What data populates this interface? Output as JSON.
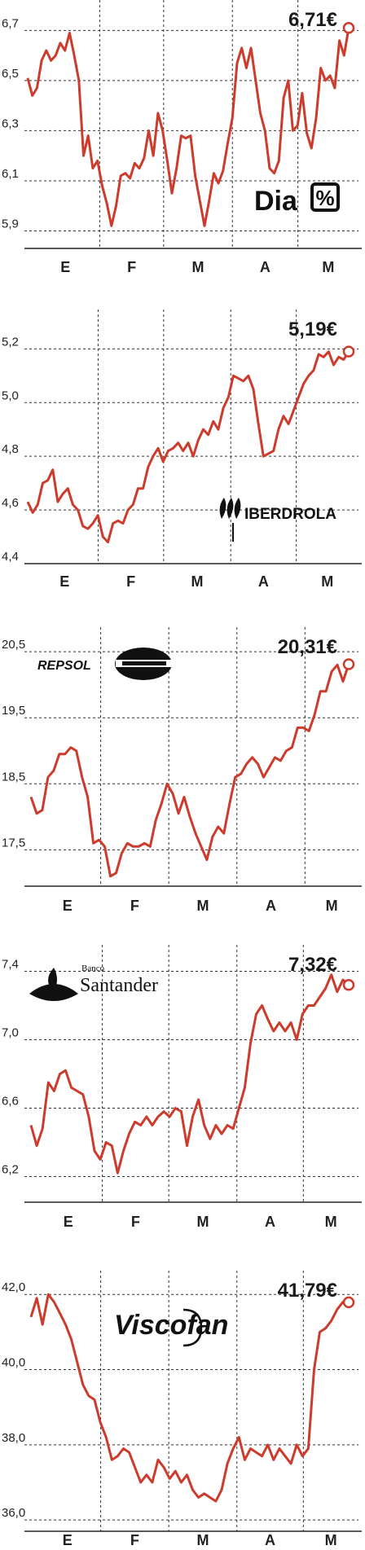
{
  "colors": {
    "line": "#cc3b2b",
    "grid": "#333333",
    "axis": "#222222",
    "text": "#222222"
  },
  "months": [
    "E",
    "F",
    "M",
    "A",
    "M"
  ],
  "chart_data": [
    {
      "type": "line",
      "company_logo": "Dia %",
      "price_label": "6,71€",
      "yticks": [
        "6,7",
        "6,5",
        "6,3",
        "6,1",
        "5,9"
      ],
      "ytick_values": [
        6.7,
        6.5,
        6.3,
        6.1,
        5.9
      ],
      "ylim": [
        5.83,
        6.75
      ],
      "xlabels": [
        "E",
        "F",
        "M",
        "A",
        "M"
      ],
      "month_boundaries": [
        0.21,
        0.405,
        0.615,
        0.815
      ],
      "series": [
        {
          "values": [
            6.51,
            6.44,
            6.47,
            6.58,
            6.62,
            6.58,
            6.6,
            6.65,
            6.62,
            6.69,
            6.6,
            6.5,
            6.2,
            6.28,
            6.15,
            6.18,
            6.08,
            6.01,
            5.92,
            6.0,
            6.12,
            6.13,
            6.11,
            6.17,
            6.15,
            6.19,
            6.3,
            6.2,
            6.37,
            6.3,
            6.18,
            6.05,
            6.15,
            6.28,
            6.27,
            6.28,
            6.12,
            6.02,
            5.92,
            6.02,
            6.13,
            6.09,
            6.14,
            6.25,
            6.35,
            6.57,
            6.63,
            6.55,
            6.63,
            6.5,
            6.37,
            6.3,
            6.15,
            6.13,
            6.18,
            6.43,
            6.5,
            6.3,
            6.32,
            6.45,
            6.29,
            6.23,
            6.35,
            6.55,
            6.5,
            6.52,
            6.47,
            6.66,
            6.6,
            6.71
          ]
        }
      ]
    },
    {
      "type": "line",
      "company_logo": "IBERDROLA",
      "price_label": "5,19€",
      "yticks": [
        "5,2",
        "5,0",
        "4,8",
        "4,6",
        "4,4"
      ],
      "ytick_values": [
        5.2,
        5.0,
        4.8,
        4.6,
        4.4
      ],
      "ylim": [
        4.4,
        5.28
      ],
      "xlabels": [
        "E",
        "F",
        "M",
        "A",
        "M"
      ],
      "month_boundaries": [
        0.205,
        0.405,
        0.61,
        0.81
      ],
      "series": [
        {
          "values": [
            4.63,
            4.59,
            4.62,
            4.7,
            4.71,
            4.75,
            4.63,
            4.66,
            4.68,
            4.62,
            4.6,
            4.54,
            4.53,
            4.55,
            4.58,
            4.5,
            4.48,
            4.55,
            4.56,
            4.55,
            4.6,
            4.62,
            4.68,
            4.68,
            4.76,
            4.8,
            4.83,
            4.78,
            4.82,
            4.83,
            4.85,
            4.82,
            4.85,
            4.8,
            4.86,
            4.9,
            4.88,
            4.93,
            4.9,
            4.98,
            5.02,
            5.1,
            5.09,
            5.08,
            5.1,
            5.05,
            4.92,
            4.8,
            4.81,
            4.82,
            4.9,
            4.95,
            4.92,
            4.97,
            5.02,
            5.07,
            5.1,
            5.12,
            5.18,
            5.17,
            5.19,
            5.14,
            5.17,
            5.16,
            5.19
          ]
        }
      ]
    },
    {
      "type": "line",
      "company_logo": "REPSOL",
      "price_label": "20,31€",
      "yticks": [
        "20,5",
        "19,5",
        "18,5",
        "17,5"
      ],
      "ytick_values": [
        20.5,
        19.5,
        18.5,
        17.5
      ],
      "ylim": [
        16.95,
        20.6
      ],
      "xlabels": [
        "E",
        "F",
        "M",
        "A",
        "M"
      ],
      "month_boundaries": [
        0.205,
        0.415,
        0.625,
        0.835
      ],
      "series": [
        {
          "values": [
            18.3,
            18.05,
            18.1,
            18.6,
            18.7,
            18.95,
            18.95,
            19.05,
            19.0,
            18.6,
            18.3,
            17.6,
            17.65,
            17.55,
            17.1,
            17.15,
            17.45,
            17.6,
            17.55,
            17.55,
            17.6,
            17.55,
            17.95,
            18.2,
            18.5,
            18.35,
            18.05,
            18.3,
            18.0,
            17.75,
            17.55,
            17.35,
            17.7,
            17.85,
            17.75,
            18.2,
            18.6,
            18.65,
            18.8,
            18.9,
            18.8,
            18.6,
            18.75,
            18.9,
            18.85,
            19.0,
            19.05,
            19.35,
            19.35,
            19.3,
            19.55,
            19.9,
            19.9,
            20.2,
            20.3,
            20.05,
            20.31
          ]
        }
      ]
    },
    {
      "type": "line",
      "company_logo": "Banco Santander",
      "price_label": "7,32€",
      "yticks": [
        "7,4",
        "7,0",
        "6,6",
        "6,2"
      ],
      "ytick_values": [
        7.4,
        7.0,
        6.6,
        6.2
      ],
      "ylim": [
        6.05,
        7.45
      ],
      "xlabels": [
        "E",
        "F",
        "M",
        "A",
        "M"
      ],
      "month_boundaries": [
        0.21,
        0.415,
        0.625,
        0.83
      ],
      "series": [
        {
          "values": [
            6.5,
            6.38,
            6.48,
            6.75,
            6.7,
            6.8,
            6.82,
            6.72,
            6.7,
            6.68,
            6.55,
            6.35,
            6.3,
            6.4,
            6.38,
            6.22,
            6.35,
            6.45,
            6.52,
            6.5,
            6.55,
            6.5,
            6.55,
            6.58,
            6.55,
            6.6,
            6.58,
            6.38,
            6.55,
            6.65,
            6.5,
            6.42,
            6.5,
            6.45,
            6.5,
            6.48,
            6.6,
            6.72,
            6.98,
            7.15,
            7.2,
            7.12,
            7.05,
            7.1,
            7.05,
            7.1,
            7.0,
            7.15,
            7.2,
            7.2,
            7.25,
            7.3,
            7.38,
            7.28,
            7.35,
            7.32
          ]
        }
      ]
    },
    {
      "type": "line",
      "company_logo": "Viscofan",
      "price_label": "41,79€",
      "yticks": [
        "42,0",
        "40,0",
        "38,0",
        "36,0"
      ],
      "ytick_values": [
        42.0,
        40.0,
        38.0,
        36.0
      ],
      "ylim": [
        35.7,
        42.2
      ],
      "xlabels": [
        "E",
        "F",
        "M",
        "A",
        "M"
      ],
      "month_boundaries": [
        0.205,
        0.415,
        0.625,
        0.83
      ],
      "series": [
        {
          "values": [
            41.4,
            41.9,
            41.2,
            42.0,
            41.8,
            41.5,
            41.2,
            40.8,
            40.2,
            39.6,
            39.3,
            39.2,
            38.6,
            38.2,
            37.6,
            37.7,
            37.9,
            37.8,
            37.4,
            37.0,
            37.2,
            37.0,
            37.6,
            37.4,
            37.1,
            37.3,
            37.0,
            37.2,
            36.8,
            36.6,
            36.7,
            36.6,
            36.5,
            36.8,
            37.5,
            37.9,
            38.2,
            37.6,
            37.9,
            37.8,
            37.7,
            38.0,
            37.6,
            37.9,
            37.7,
            37.5,
            38.0,
            37.7,
            37.9,
            40.0,
            41.0,
            41.1,
            41.3,
            41.6,
            41.8,
            41.79
          ]
        }
      ]
    }
  ]
}
